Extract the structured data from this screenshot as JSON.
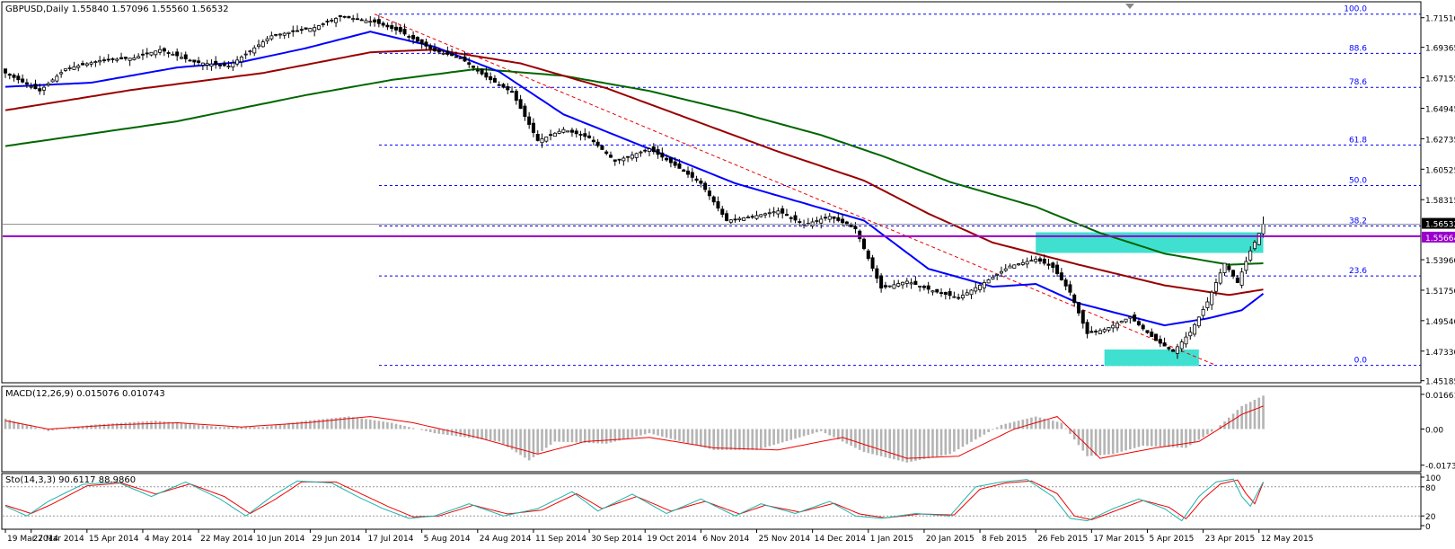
{
  "colors": {
    "background": "#ffffff",
    "frame": "#000000",
    "grid_fib": "#0000ff",
    "price_line": "#8a8a8a",
    "support_line": "#9900cc",
    "highlight_zone": "#40e0d0",
    "ma_fast": "#0000ff",
    "ma_mid": "#990000",
    "ma_slow": "#006600",
    "macd_hist": "#b4b4b4",
    "macd_signal": "#ee0000",
    "sto_main": "#20b2aa",
    "sto_signal": "#ee0000",
    "trendline": "#ee0000"
  },
  "header": {
    "main": "GBPUSD,Daily  1.55840 1.57096 1.55560 1.56532",
    "macd": "MACD(12,26,9) 0.015076 0.010743",
    "sto": "Sto(14,3,3) 90.6117 88.9860"
  },
  "price_axis": {
    "ticks": [
      {
        "label": "1.71510",
        "value": 1.7151
      },
      {
        "label": "1.69365",
        "value": 1.69365
      },
      {
        "label": "1.67155",
        "value": 1.67155
      },
      {
        "label": "1.64945",
        "value": 1.64945
      },
      {
        "label": "1.62735",
        "value": 1.62735
      },
      {
        "label": "1.60525",
        "value": 1.60525
      },
      {
        "label": "1.58315",
        "value": 1.58315
      },
      {
        "label": "1.53960",
        "value": 1.5396
      },
      {
        "label": "1.51750",
        "value": 1.5175
      },
      {
        "label": "1.49540",
        "value": 1.4954
      },
      {
        "label": "1.47330",
        "value": 1.4733
      },
      {
        "label": "1.45185",
        "value": 1.45185
      }
    ],
    "current_price": {
      "label": "1.56532",
      "value": 1.56532
    },
    "support_level": {
      "label": "1.55664",
      "value": 1.55664
    }
  },
  "macd_axis": {
    "ticks": [
      {
        "label": "0.016618",
        "value": 0.016618
      },
      {
        "label": "0.00",
        "value": 0
      },
      {
        "label": "-0.017304",
        "value": -0.017304
      }
    ]
  },
  "sto_axis": {
    "ticks": [
      {
        "label": "100",
        "value": 100
      },
      {
        "label": "80",
        "value": 80
      },
      {
        "label": "20",
        "value": 20
      },
      {
        "label": "0",
        "value": 0
      }
    ]
  },
  "date_axis": [
    {
      "label": "19 Mar 2014",
      "i": 0
    },
    {
      "label": "27 Mar 2014",
      "i": 6
    },
    {
      "label": "15 Apr 2014",
      "i": 19
    },
    {
      "label": "4 May 2014",
      "i": 32
    },
    {
      "label": "22 May 2014",
      "i": 45
    },
    {
      "label": "10 Jun 2014",
      "i": 58
    },
    {
      "label": "29 Jun 2014",
      "i": 71
    },
    {
      "label": "17 Jul 2014",
      "i": 84
    },
    {
      "label": "5 Aug 2014",
      "i": 97
    },
    {
      "label": "24 Aug 2014",
      "i": 110
    },
    {
      "label": "11 Sep 2014",
      "i": 123
    },
    {
      "label": "30 Sep 2014",
      "i": 136
    },
    {
      "label": "19 Oct 2014",
      "i": 149
    },
    {
      "label": "6 Nov 2014",
      "i": 162
    },
    {
      "label": "25 Nov 2014",
      "i": 175
    },
    {
      "label": "14 Dec 2014",
      "i": 188
    },
    {
      "label": "1 Jan 2015",
      "i": 201
    },
    {
      "label": "20 Jan 2015",
      "i": 214
    },
    {
      "label": "8 Feb 2015",
      "i": 227
    },
    {
      "label": "26 Feb 2015",
      "i": 240
    },
    {
      "label": "17 Mar 2015",
      "i": 253
    },
    {
      "label": "5 Apr 2015",
      "i": 266
    },
    {
      "label": "23 Apr 2015",
      "i": 279
    },
    {
      "label": "12 May 2015",
      "i": 292
    }
  ],
  "fib_levels": [
    {
      "label": "100.0",
      "value": 1.7177
    },
    {
      "label": "88.6",
      "value": 1.6893
    },
    {
      "label": "78.6",
      "value": 1.6646
    },
    {
      "label": "61.8",
      "value": 1.6228
    },
    {
      "label": "50.0",
      "value": 1.5934
    },
    {
      "label": "38.2",
      "value": 1.5641
    },
    {
      "label": "23.6",
      "value": 1.5278
    },
    {
      "label": "0.0",
      "value": 1.463
    }
  ],
  "chart_data": {
    "type": "candlestick",
    "symbol": "GBPUSD",
    "timeframe": "Daily",
    "last_bar": {
      "open": 1.5584,
      "high": 1.57096,
      "low": 1.5556,
      "close": 1.56532
    },
    "price_range": [
      1.451,
      1.726
    ],
    "price_key_points": [
      [
        0,
        1.675
      ],
      [
        8,
        1.662
      ],
      [
        14,
        1.678
      ],
      [
        22,
        1.684
      ],
      [
        30,
        1.686
      ],
      [
        36,
        1.692
      ],
      [
        44,
        1.683
      ],
      [
        52,
        1.68
      ],
      [
        62,
        1.702
      ],
      [
        72,
        1.708
      ],
      [
        78,
        1.716
      ],
      [
        86,
        1.712
      ],
      [
        92,
        1.705
      ],
      [
        100,
        1.691
      ],
      [
        106,
        1.686
      ],
      [
        112,
        1.672
      ],
      [
        118,
        1.661
      ],
      [
        124,
        1.626
      ],
      [
        130,
        1.634
      ],
      [
        136,
        1.628
      ],
      [
        142,
        1.611
      ],
      [
        150,
        1.62
      ],
      [
        156,
        1.608
      ],
      [
        162,
        1.595
      ],
      [
        168,
        1.568
      ],
      [
        174,
        1.571
      ],
      [
        180,
        1.575
      ],
      [
        186,
        1.565
      ],
      [
        192,
        1.571
      ],
      [
        198,
        1.562
      ],
      [
        204,
        1.519
      ],
      [
        210,
        1.524
      ],
      [
        216,
        1.517
      ],
      [
        222,
        1.512
      ],
      [
        228,
        1.523
      ],
      [
        234,
        1.535
      ],
      [
        240,
        1.54
      ],
      [
        244,
        1.534
      ],
      [
        248,
        1.516
      ],
      [
        252,
        1.486
      ],
      [
        256,
        1.489
      ],
      [
        262,
        1.498
      ],
      [
        268,
        1.481
      ],
      [
        272,
        1.473
      ],
      [
        276,
        1.487
      ],
      [
        280,
        1.509
      ],
      [
        284,
        1.537
      ],
      [
        287,
        1.523
      ],
      [
        290,
        1.546
      ],
      [
        293,
        1.565
      ]
    ],
    "ma_fast_key_points": [
      [
        0,
        1.665
      ],
      [
        20,
        1.668
      ],
      [
        40,
        1.679
      ],
      [
        55,
        1.683
      ],
      [
        70,
        1.693
      ],
      [
        85,
        1.705
      ],
      [
        100,
        1.694
      ],
      [
        115,
        1.676
      ],
      [
        130,
        1.645
      ],
      [
        150,
        1.62
      ],
      [
        170,
        1.595
      ],
      [
        190,
        1.577
      ],
      [
        200,
        1.568
      ],
      [
        215,
        1.533
      ],
      [
        230,
        1.52
      ],
      [
        240,
        1.522
      ],
      [
        250,
        1.508
      ],
      [
        260,
        1.5
      ],
      [
        270,
        1.492
      ],
      [
        280,
        1.497
      ],
      [
        288,
        1.503
      ],
      [
        293,
        1.515
      ]
    ],
    "ma_mid_key_points": [
      [
        0,
        1.648
      ],
      [
        30,
        1.663
      ],
      [
        60,
        1.675
      ],
      [
        85,
        1.69
      ],
      [
        100,
        1.692
      ],
      [
        120,
        1.682
      ],
      [
        140,
        1.664
      ],
      [
        160,
        1.641
      ],
      [
        180,
        1.618
      ],
      [
        200,
        1.597
      ],
      [
        215,
        1.573
      ],
      [
        230,
        1.552
      ],
      [
        250,
        1.536
      ],
      [
        270,
        1.521
      ],
      [
        285,
        1.514
      ],
      [
        293,
        1.518
      ]
    ],
    "ma_slow_key_points": [
      [
        0,
        1.622
      ],
      [
        40,
        1.64
      ],
      [
        70,
        1.659
      ],
      [
        90,
        1.67
      ],
      [
        110,
        1.678
      ],
      [
        130,
        1.673
      ],
      [
        150,
        1.662
      ],
      [
        170,
        1.647
      ],
      [
        190,
        1.63
      ],
      [
        205,
        1.614
      ],
      [
        220,
        1.596
      ],
      [
        240,
        1.578
      ],
      [
        255,
        1.559
      ],
      [
        270,
        1.544
      ],
      [
        285,
        1.536
      ],
      [
        293,
        1.537
      ]
    ],
    "macd_hist_key_points": [
      [
        0,
        0.005
      ],
      [
        10,
        -0.001
      ],
      [
        20,
        0.002
      ],
      [
        35,
        0.004
      ],
      [
        50,
        0.001
      ],
      [
        60,
        0.001
      ],
      [
        70,
        0.004
      ],
      [
        80,
        0.006
      ],
      [
        90,
        0.003
      ],
      [
        100,
        -0.002
      ],
      [
        115,
        -0.006
      ],
      [
        122,
        -0.015
      ],
      [
        128,
        -0.006
      ],
      [
        140,
        -0.007
      ],
      [
        150,
        -0.002
      ],
      [
        165,
        -0.01
      ],
      [
        175,
        -0.01
      ],
      [
        190,
        -0.001
      ],
      [
        200,
        -0.011
      ],
      [
        210,
        -0.016
      ],
      [
        220,
        -0.012
      ],
      [
        232,
        0.002
      ],
      [
        240,
        0.006
      ],
      [
        246,
        0.003
      ],
      [
        252,
        -0.013
      ],
      [
        258,
        -0.012
      ],
      [
        265,
        -0.008
      ],
      [
        275,
        -0.009
      ],
      [
        282,
        0.0
      ],
      [
        288,
        0.011
      ],
      [
        293,
        0.016
      ]
    ],
    "macd_signal_key_points": [
      [
        0,
        0.004
      ],
      [
        10,
        0.0
      ],
      [
        25,
        0.002
      ],
      [
        40,
        0.003
      ],
      [
        55,
        0.001
      ],
      [
        70,
        0.003
      ],
      [
        85,
        0.006
      ],
      [
        95,
        0.003
      ],
      [
        110,
        -0.004
      ],
      [
        124,
        -0.012
      ],
      [
        135,
        -0.006
      ],
      [
        150,
        -0.004
      ],
      [
        165,
        -0.009
      ],
      [
        180,
        -0.01
      ],
      [
        195,
        -0.004
      ],
      [
        210,
        -0.014
      ],
      [
        222,
        -0.013
      ],
      [
        235,
        0.0
      ],
      [
        245,
        0.006
      ],
      [
        255,
        -0.014
      ],
      [
        268,
        -0.009
      ],
      [
        278,
        -0.006
      ],
      [
        288,
        0.007
      ],
      [
        293,
        0.011
      ]
    ],
    "stoch_main_key_points": [
      [
        0,
        40
      ],
      [
        5,
        20
      ],
      [
        10,
        50
      ],
      [
        18,
        85
      ],
      [
        26,
        90
      ],
      [
        34,
        60
      ],
      [
        42,
        90
      ],
      [
        50,
        55
      ],
      [
        56,
        20
      ],
      [
        62,
        60
      ],
      [
        68,
        92
      ],
      [
        76,
        88
      ],
      [
        82,
        60
      ],
      [
        88,
        35
      ],
      [
        94,
        15
      ],
      [
        100,
        20
      ],
      [
        108,
        45
      ],
      [
        116,
        20
      ],
      [
        124,
        35
      ],
      [
        132,
        70
      ],
      [
        138,
        30
      ],
      [
        146,
        65
      ],
      [
        154,
        25
      ],
      [
        162,
        55
      ],
      [
        170,
        20
      ],
      [
        176,
        45
      ],
      [
        184,
        25
      ],
      [
        192,
        50
      ],
      [
        198,
        20
      ],
      [
        204,
        15
      ],
      [
        212,
        25
      ],
      [
        220,
        20
      ],
      [
        226,
        80
      ],
      [
        232,
        90
      ],
      [
        238,
        95
      ],
      [
        244,
        60
      ],
      [
        248,
        15
      ],
      [
        252,
        10
      ],
      [
        258,
        35
      ],
      [
        264,
        55
      ],
      [
        270,
        35
      ],
      [
        274,
        10
      ],
      [
        278,
        60
      ],
      [
        282,
        90
      ],
      [
        286,
        96
      ],
      [
        288,
        60
      ],
      [
        290,
        40
      ],
      [
        293,
        90
      ]
    ],
    "stoch_signal_key_points": [
      [
        0,
        42
      ],
      [
        6,
        25
      ],
      [
        11,
        45
      ],
      [
        19,
        82
      ],
      [
        27,
        88
      ],
      [
        35,
        65
      ],
      [
        43,
        86
      ],
      [
        51,
        60
      ],
      [
        57,
        25
      ],
      [
        63,
        55
      ],
      [
        69,
        90
      ],
      [
        77,
        90
      ],
      [
        83,
        65
      ],
      [
        89,
        40
      ],
      [
        95,
        18
      ],
      [
        101,
        20
      ],
      [
        109,
        42
      ],
      [
        117,
        24
      ],
      [
        125,
        32
      ],
      [
        133,
        66
      ],
      [
        139,
        35
      ],
      [
        147,
        60
      ],
      [
        155,
        30
      ],
      [
        163,
        50
      ],
      [
        171,
        24
      ],
      [
        177,
        42
      ],
      [
        185,
        28
      ],
      [
        193,
        46
      ],
      [
        199,
        24
      ],
      [
        205,
        16
      ],
      [
        213,
        24
      ],
      [
        221,
        22
      ],
      [
        227,
        75
      ],
      [
        233,
        88
      ],
      [
        239,
        92
      ],
      [
        245,
        66
      ],
      [
        249,
        20
      ],
      [
        253,
        12
      ],
      [
        259,
        32
      ],
      [
        265,
        52
      ],
      [
        271,
        38
      ],
      [
        275,
        14
      ],
      [
        279,
        55
      ],
      [
        283,
        86
      ],
      [
        287,
        94
      ],
      [
        289,
        66
      ],
      [
        291,
        45
      ],
      [
        293,
        89
      ]
    ],
    "highlight_zones": [
      {
        "i_from": 240,
        "i_to": 293,
        "price_from": 1.5445,
        "price_to": 1.5595
      },
      {
        "i_from": 256,
        "i_to": 278,
        "price_from": 1.4625,
        "price_to": 1.4745
      }
    ]
  }
}
